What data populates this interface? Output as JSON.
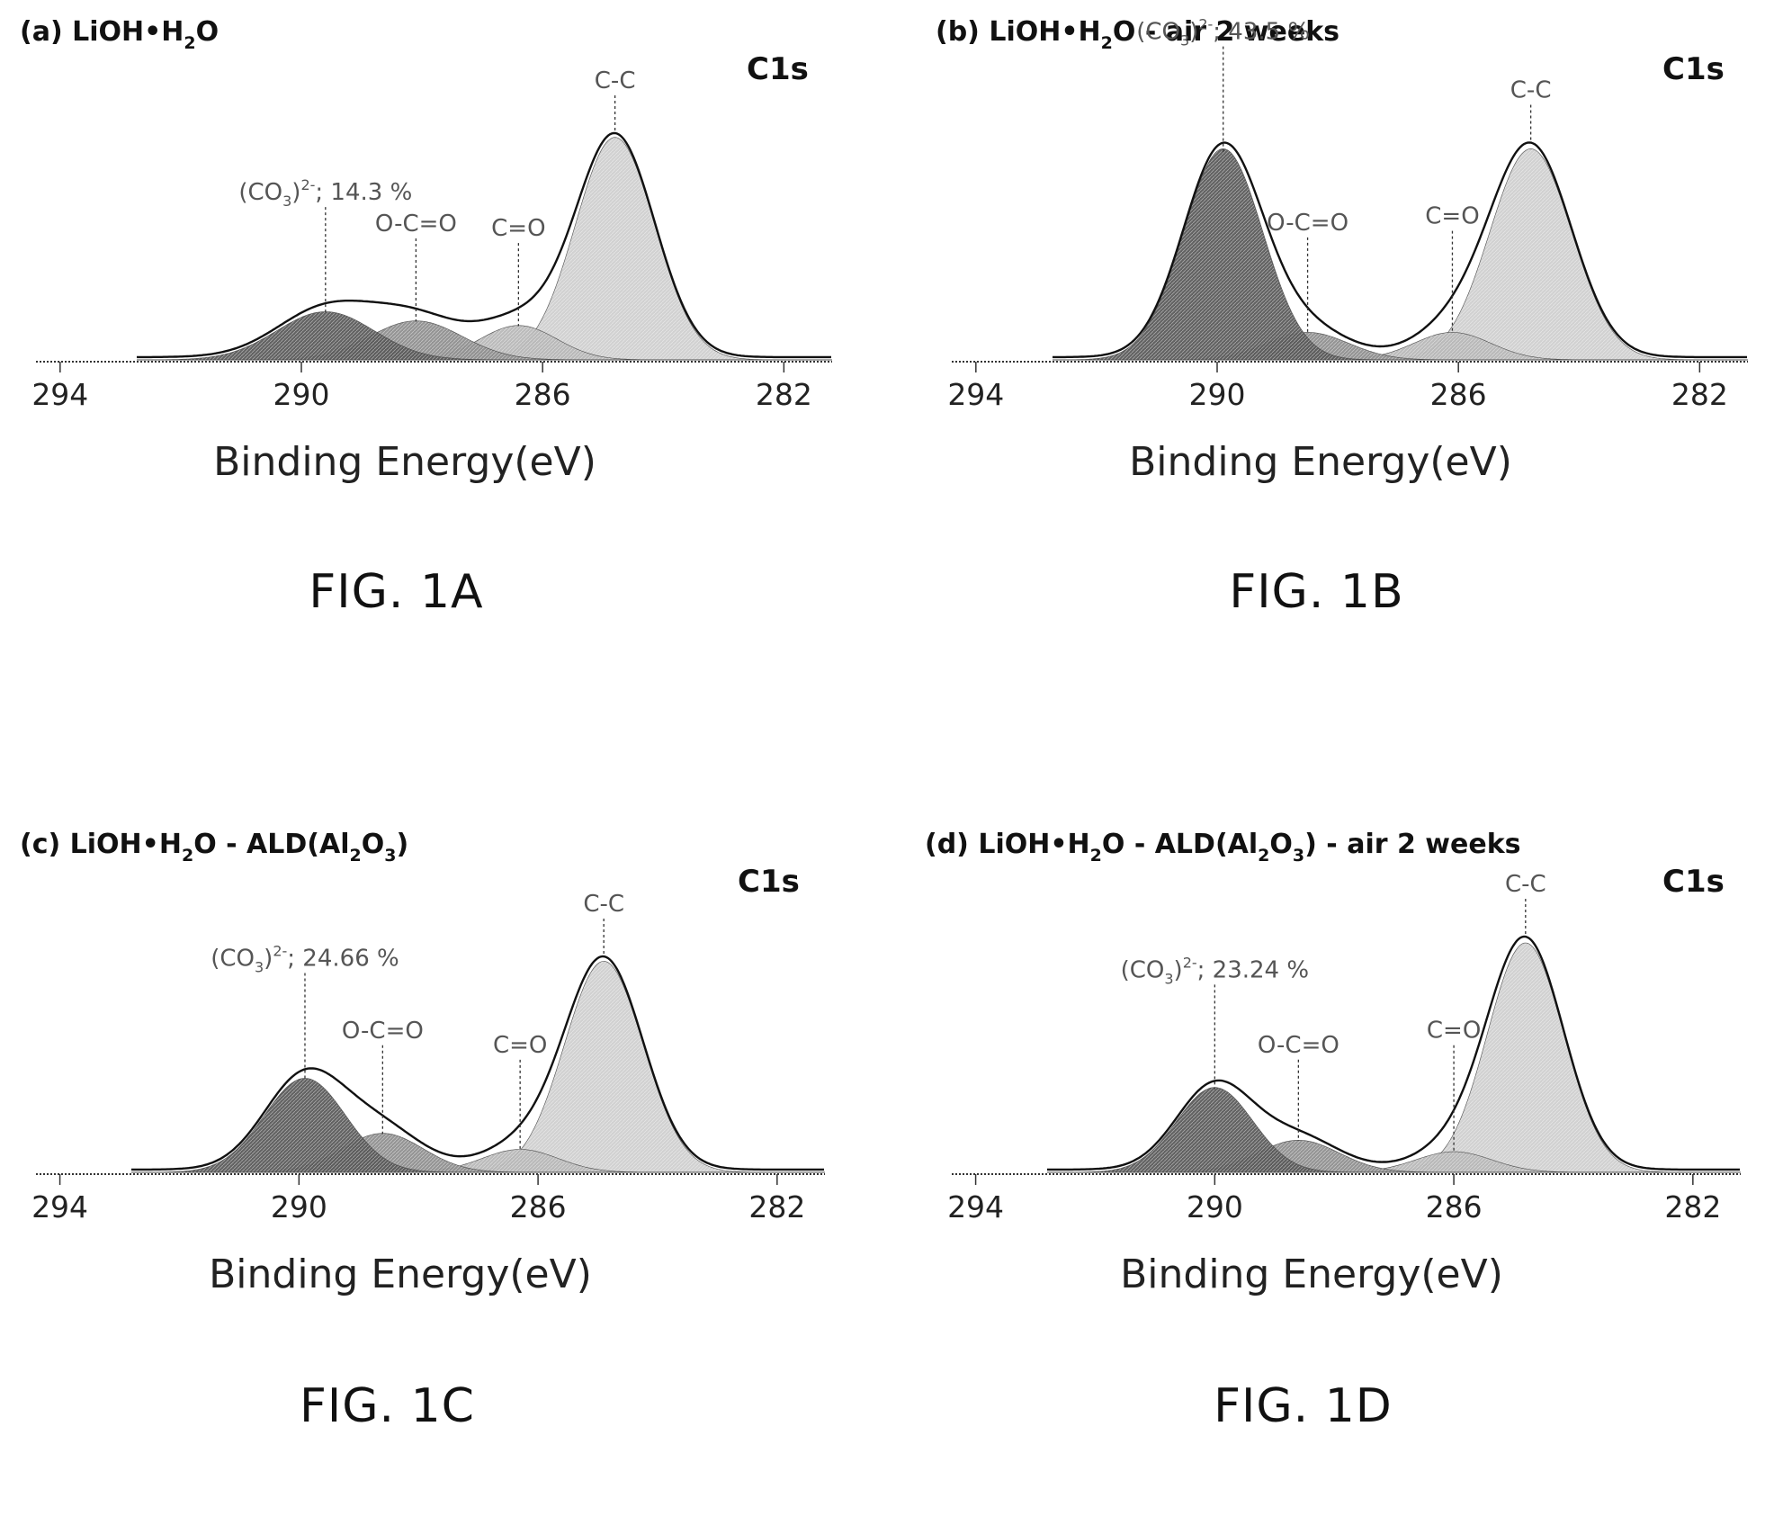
{
  "colors": {
    "envelope": "#111111",
    "carbonate_fill": "#5a5a5a",
    "oco_fill": "#8f8f8f",
    "co_fill": "#b8b8b8",
    "cc_fill": "#cfcfcf",
    "axis": "#333333",
    "text": "#111111",
    "label_text": "#555555"
  },
  "chart_data": [
    {
      "type": "area",
      "panel_title": "(a) LiOH•H2O",
      "title_prefix": "(a) LiOH•H",
      "title_sub1": "2",
      "title_suffix": "O",
      "title_sub2": "",
      "title_suffix2": "",
      "title_sub3": "",
      "title_suffix3": "",
      "region_label": "C1s",
      "xlabel": "Binding Energy(eV)",
      "ylabel": "",
      "xlim": [
        294.4,
        281.2
      ],
      "x_reversed": true,
      "xticks": [
        294,
        290,
        286,
        282
      ],
      "xtick_labels": [
        "294",
        "290",
        "286",
        "282"
      ],
      "carbonate_label": "(CO3)2-; 14.3 %",
      "carbonate_value_text": "; 14.3 %",
      "figure_caption": "FIG. 1A",
      "components": [
        {
          "name": "(CO3)2-",
          "center_ev": 289.6,
          "height": 0.21,
          "fwhm": 1.9,
          "label": "(CO3)2-; 14.3 %"
        },
        {
          "name": "O-C=O",
          "center_ev": 288.1,
          "height": 0.17,
          "fwhm": 1.8,
          "label": "O-C=O"
        },
        {
          "name": "C=O",
          "center_ev": 286.4,
          "height": 0.15,
          "fwhm": 1.5,
          "label": "C=O"
        },
        {
          "name": "C-C",
          "center_ev": 284.8,
          "height": 0.97,
          "fwhm": 1.55,
          "label": "C-C"
        }
      ]
    },
    {
      "type": "area",
      "panel_title": "(b) LiOH•H2O - air 2 weeks",
      "title_prefix": "(b) LiOH•H",
      "title_sub1": "2",
      "title_suffix": "O - air 2 weeks",
      "title_sub2": "",
      "title_suffix2": "",
      "title_sub3": "",
      "title_suffix3": "",
      "region_label": "C1s",
      "xlabel": "Binding Energy(eV)",
      "ylabel": "",
      "xlim": [
        294.4,
        281.2
      ],
      "x_reversed": true,
      "xticks": [
        294,
        290,
        286,
        282
      ],
      "xtick_labels": [
        "294",
        "290",
        "286",
        "282"
      ],
      "carbonate_label": "(CO3)2-; 43.5 %",
      "carbonate_value_text": "; 43.5 %",
      "figure_caption": "FIG. 1B",
      "components": [
        {
          "name": "(CO3)2-",
          "center_ev": 289.9,
          "height": 0.92,
          "fwhm": 1.55,
          "label": "(CO3)2-; 43.5 %"
        },
        {
          "name": "O-C=O",
          "center_ev": 288.5,
          "height": 0.12,
          "fwhm": 1.6,
          "label": "O-C=O"
        },
        {
          "name": "C=O",
          "center_ev": 286.1,
          "height": 0.12,
          "fwhm": 1.5,
          "label": "C=O"
        },
        {
          "name": "C-C",
          "center_ev": 284.8,
          "height": 0.92,
          "fwhm": 1.6,
          "label": "C-C"
        }
      ]
    },
    {
      "type": "area",
      "panel_title": "(c) LiOH•H2O - ALD(Al2O3)",
      "title_prefix": "(c) LiOH•H",
      "title_sub1": "2",
      "title_suffix": "O - ALD(Al",
      "title_sub2": "2",
      "title_suffix2": "O",
      "title_sub3": "3",
      "title_suffix3": ")",
      "region_label": "C1s",
      "xlabel": "Binding Energy(eV)",
      "ylabel": "",
      "xlim": [
        294.4,
        281.2
      ],
      "x_reversed": true,
      "xticks": [
        294,
        290,
        286,
        282
      ],
      "xtick_labels": [
        "294",
        "290",
        "286",
        "282"
      ],
      "carbonate_label": "(CO3)2-; 24.66 %",
      "carbonate_value_text": "; 24.66 %",
      "figure_caption": "FIG. 1C",
      "components": [
        {
          "name": "(CO3)2-",
          "center_ev": 289.9,
          "height": 0.41,
          "fwhm": 1.6,
          "label": "(CO3)2-; 24.66 %"
        },
        {
          "name": "O-C=O",
          "center_ev": 288.6,
          "height": 0.17,
          "fwhm": 1.6,
          "label": "O-C=O"
        },
        {
          "name": "C=O",
          "center_ev": 286.3,
          "height": 0.1,
          "fwhm": 1.5,
          "label": "C=O"
        },
        {
          "name": "C-C",
          "center_ev": 284.9,
          "height": 0.92,
          "fwhm": 1.55,
          "label": "C-C"
        }
      ]
    },
    {
      "type": "area",
      "panel_title": "(d) LiOH•H2O - ALD(Al2O3) - air 2 weeks",
      "title_prefix": "(d) LiOH•H",
      "title_sub1": "2",
      "title_suffix": "O - ALD(Al",
      "title_sub2": "2",
      "title_suffix2": "O",
      "title_sub3": "3",
      "title_suffix3": ") - air 2 weeks",
      "region_label": "C1s",
      "xlabel": "Binding Energy(eV)",
      "ylabel": "",
      "xlim": [
        294.4,
        281.2
      ],
      "x_reversed": true,
      "xticks": [
        294,
        290,
        286,
        282
      ],
      "xtick_labels": [
        "294",
        "290",
        "286",
        "282"
      ],
      "carbonate_label": "(CO3)2-; 23.24 %",
      "carbonate_value_text": "; 23.24 %",
      "figure_caption": "FIG. 1D",
      "components": [
        {
          "name": "(CO3)2-",
          "center_ev": 290.0,
          "height": 0.37,
          "fwhm": 1.5,
          "label": "(CO3)2-; 23.24 %"
        },
        {
          "name": "O-C=O",
          "center_ev": 288.6,
          "height": 0.14,
          "fwhm": 1.6,
          "label": "O-C=O"
        },
        {
          "name": "C=O",
          "center_ev": 286.0,
          "height": 0.09,
          "fwhm": 1.5,
          "label": "C=O"
        },
        {
          "name": "C-C",
          "center_ev": 284.8,
          "height": 1.0,
          "fwhm": 1.5,
          "label": "C-C"
        }
      ]
    }
  ]
}
